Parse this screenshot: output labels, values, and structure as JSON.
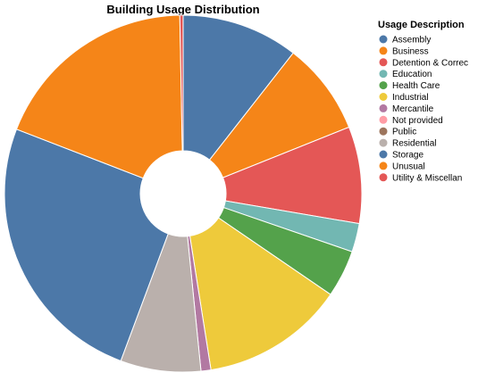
{
  "chart_data": {
    "type": "pie",
    "title": "Building Usage Distribution",
    "legend_title": "Usage Description",
    "legend_position": "right",
    "inner_radius_ratio": 0.24,
    "categories": [
      "Assembly",
      "Business",
      "Detention & Correc",
      "Education",
      "Health Care",
      "Industrial",
      "Mercantile",
      "Not provided",
      "Public",
      "Residential",
      "Storage",
      "Unusual",
      "Utility & Miscellan"
    ],
    "colors": [
      "#4c78a8",
      "#f58518",
      "#e45756",
      "#72b7b2",
      "#54a24b",
      "#eeca3b",
      "#b279a2",
      "#ff9da6",
      "#9d755d",
      "#bab0ac",
      "#4c78a8",
      "#f58518",
      "#e45756"
    ],
    "values": [
      10.6,
      8.4,
      8.8,
      2.6,
      4.3,
      13.0,
      0.9,
      0.0,
      0.0,
      7.3,
      25.3,
      18.9,
      0.3
    ]
  }
}
